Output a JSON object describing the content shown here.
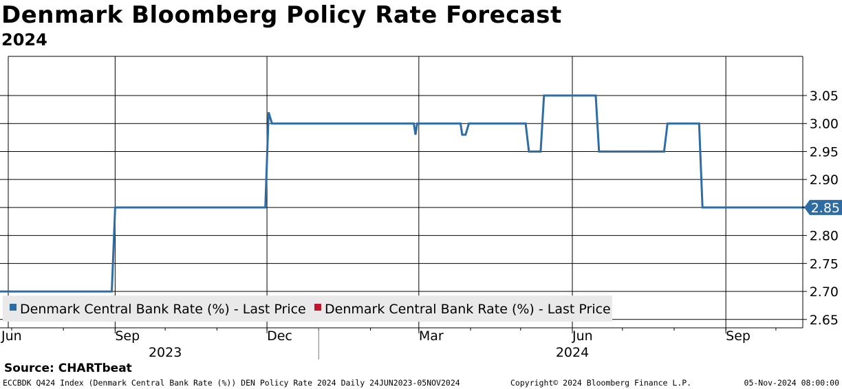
{
  "header": {
    "title": "Denmark Bloomberg Policy Rate Forecast",
    "subtitle": "2024"
  },
  "footer": {
    "source": "Source: CHARTbeat",
    "ticker_info": "ECCBDK Q424 Index (Denmark Central Bank Rate (%)) DEN Policy Rate 2024  Daily 24JUN2023-05NOV2024",
    "copyright": "Copyright© 2024 Bloomberg Finance L.P.",
    "timestamp": "05-Nov-2024 08:00:00"
  },
  "chart_data": {
    "type": "line",
    "title": "Denmark Bloomberg Policy Rate Forecast",
    "subtitle": "2024",
    "x_axis": {
      "type": "date",
      "range": [
        "2023-06-24",
        "2024-11-05"
      ],
      "month_ticks": [
        {
          "label": "Jun",
          "date": "2023-06-01"
        },
        {
          "label": "Sep",
          "date": "2023-09-01"
        },
        {
          "label": "Dec",
          "date": "2023-12-01"
        },
        {
          "label": "Mar",
          "date": "2024-03-01"
        },
        {
          "label": "Jun",
          "date": "2024-06-01"
        },
        {
          "label": "Sep",
          "date": "2024-09-01"
        }
      ],
      "year_labels": [
        {
          "label": "2023",
          "date": "2023-10-01"
        },
        {
          "label": "2024",
          "date": "2024-06-01"
        }
      ],
      "year_divider": "2024-01-01"
    },
    "y_axis": {
      "position": "right",
      "range": [
        2.635,
        3.12
      ],
      "ticks": [
        2.65,
        2.7,
        2.75,
        2.8,
        2.85,
        2.9,
        2.95,
        3.0,
        3.05
      ]
    },
    "grid": true,
    "legend_position": "bottom-left",
    "series": [
      {
        "name": "Denmark Central Bank Rate (%) - Last Price",
        "color": "#2e6da4",
        "last_value": "2.85",
        "points": [
          {
            "x": "2023-06-24",
            "y": 2.7
          },
          {
            "x": "2023-08-30",
            "y": 2.7
          },
          {
            "x": "2023-09-01",
            "y": 2.85
          },
          {
            "x": "2023-11-30",
            "y": 2.85
          },
          {
            "x": "2023-12-02",
            "y": 3.02
          },
          {
            "x": "2023-12-04",
            "y": 3.0
          },
          {
            "x": "2024-02-27",
            "y": 3.0
          },
          {
            "x": "2024-02-28",
            "y": 2.98
          },
          {
            "x": "2024-02-29",
            "y": 3.0
          },
          {
            "x": "2024-03-26",
            "y": 3.0
          },
          {
            "x": "2024-03-27",
            "y": 2.98
          },
          {
            "x": "2024-03-29",
            "y": 2.98
          },
          {
            "x": "2024-03-31",
            "y": 3.0
          },
          {
            "x": "2024-05-04",
            "y": 3.0
          },
          {
            "x": "2024-05-06",
            "y": 2.95
          },
          {
            "x": "2024-05-13",
            "y": 2.95
          },
          {
            "x": "2024-05-15",
            "y": 3.05
          },
          {
            "x": "2024-06-15",
            "y": 3.05
          },
          {
            "x": "2024-06-17",
            "y": 2.95
          },
          {
            "x": "2024-07-26",
            "y": 2.95
          },
          {
            "x": "2024-07-28",
            "y": 3.0
          },
          {
            "x": "2024-08-16",
            "y": 3.0
          },
          {
            "x": "2024-08-18",
            "y": 2.85
          },
          {
            "x": "2024-11-05",
            "y": 2.85
          }
        ]
      },
      {
        "name": "Denmark Central Bank Rate (%) - Last Price",
        "color": "#c0162e",
        "points": []
      }
    ]
  }
}
